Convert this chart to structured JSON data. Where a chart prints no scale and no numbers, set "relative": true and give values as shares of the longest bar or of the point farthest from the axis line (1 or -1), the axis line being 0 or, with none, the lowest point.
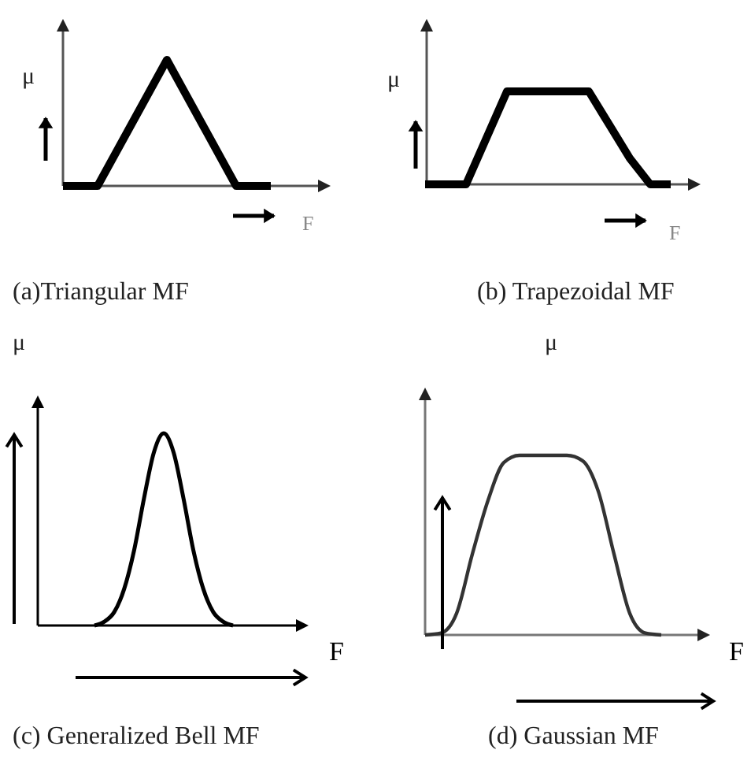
{
  "chart_data": [
    {
      "type": "line",
      "title": "(a)Triangular MF",
      "xlabel": "F",
      "ylabel": "μ",
      "relative": true,
      "color": "#000000",
      "categories": [
        null,
        null,
        null,
        null,
        null,
        null,
        null
      ],
      "values": [
        0,
        0,
        0.5,
        1,
        0.5,
        0,
        0
      ]
    },
    {
      "type": "line",
      "title": "(b) Trapezoidal MF",
      "xlabel": "F",
      "ylabel": "μ",
      "relative": true,
      "color": "#000000",
      "categories": [
        null,
        null,
        null,
        null,
        null,
        null,
        null,
        null,
        null,
        null,
        null,
        null,
        null
      ],
      "values": [
        0,
        0,
        0,
        0.5,
        1,
        1,
        1,
        1,
        1,
        0.64,
        0.28,
        0,
        0
      ]
    },
    {
      "type": "line",
      "title": "(c) Generalized Bell MF",
      "xlabel": "F",
      "ylabel": "μ",
      "relative": true,
      "color": "#000000",
      "categories": [
        null,
        null,
        null,
        null,
        null,
        null,
        null,
        null,
        null,
        null,
        null,
        null,
        null,
        null,
        null
      ],
      "values": [
        0,
        0.02,
        0.07,
        0.19,
        0.39,
        0.66,
        0.9,
        1,
        0.9,
        0.66,
        0.39,
        0.19,
        0.07,
        0.02,
        0
      ]
    },
    {
      "type": "line",
      "title": "(d) Gaussian MF",
      "xlabel": "F",
      "ylabel": "μ",
      "relative": true,
      "color": "#333333",
      "categories": [
        null,
        null,
        null,
        null,
        null,
        null,
        null,
        null,
        null,
        null,
        null,
        null,
        null,
        null,
        null,
        null
      ],
      "values": [
        0,
        0.01,
        0.12,
        0.45,
        0.75,
        0.96,
        1,
        1,
        1,
        1,
        0.97,
        0.8,
        0.45,
        0.12,
        0.01,
        0
      ]
    }
  ]
}
